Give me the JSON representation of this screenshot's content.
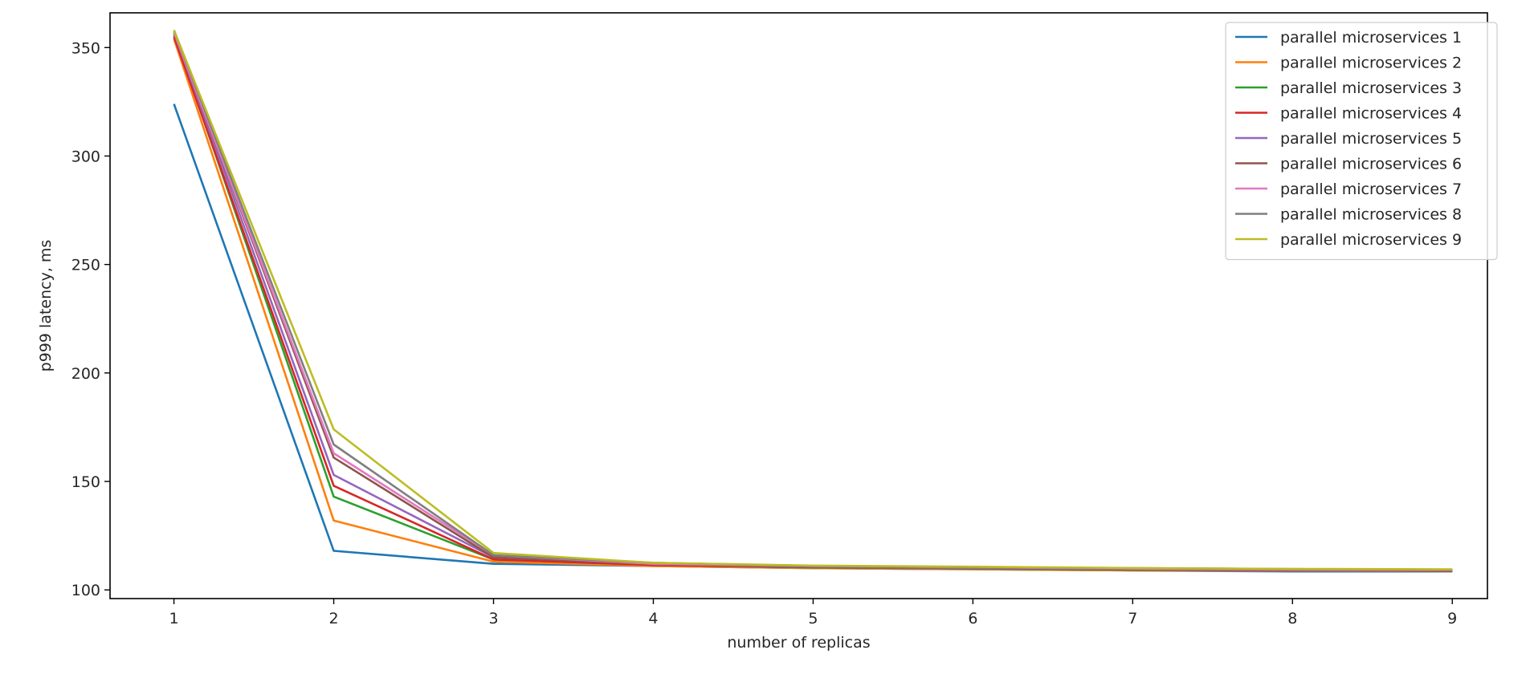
{
  "chart_data": {
    "type": "line",
    "xlabel": "number of replicas",
    "ylabel": "p999 latency, ms",
    "x": [
      1,
      2,
      3,
      4,
      5,
      6,
      7,
      8,
      9
    ],
    "xlim": [
      0.6,
      9.22
    ],
    "ylim": [
      96,
      366
    ],
    "xticks": [
      "1",
      "2",
      "3",
      "4",
      "5",
      "6",
      "7",
      "8",
      "9"
    ],
    "yticks": [
      "100",
      "150",
      "200",
      "250",
      "300",
      "350"
    ],
    "ytick_values": [
      100,
      150,
      200,
      250,
      300,
      350
    ],
    "grid": false,
    "legend_position": "top-right",
    "series": [
      {
        "name": "parallel microservices 1",
        "color": "#1f77b4",
        "values": [
          324,
          118,
          112,
          111,
          110,
          109.5,
          109,
          108.5,
          108.5
        ]
      },
      {
        "name": "parallel microservices 2",
        "color": "#ff7f0e",
        "values": [
          354,
          132,
          113,
          111,
          110,
          109.5,
          109,
          108.8,
          108.6
        ]
      },
      {
        "name": "parallel microservices 3",
        "color": "#2ca02c",
        "values": [
          356,
          143,
          114,
          111.5,
          110.3,
          109.8,
          109.2,
          108.9,
          108.7
        ]
      },
      {
        "name": "parallel microservices 4",
        "color": "#d62728",
        "values": [
          355,
          148,
          114,
          111.5,
          110.5,
          110,
          109.4,
          109,
          108.8
        ]
      },
      {
        "name": "parallel microservices 5",
        "color": "#9467bd",
        "values": [
          357,
          153,
          115,
          112,
          110.6,
          110.1,
          109.5,
          109.1,
          109
        ]
      },
      {
        "name": "parallel microservices 6",
        "color": "#8c564b",
        "values": [
          357,
          161,
          115,
          112,
          110.8,
          110.3,
          109.7,
          109.3,
          109.1
        ]
      },
      {
        "name": "parallel microservices 7",
        "color": "#e377c2",
        "values": [
          357,
          163,
          116,
          112,
          111,
          110.4,
          109.8,
          109.4,
          109.2
        ]
      },
      {
        "name": "parallel microservices 8",
        "color": "#7f7f7f",
        "values": [
          358,
          167,
          116,
          112.5,
          111,
          110.5,
          110,
          109.6,
          109.3
        ]
      },
      {
        "name": "parallel microservices 9",
        "color": "#bcbd22",
        "values": [
          358,
          174,
          117,
          112.5,
          111.2,
          110.7,
          110.1,
          109.7,
          109.5
        ]
      }
    ]
  }
}
